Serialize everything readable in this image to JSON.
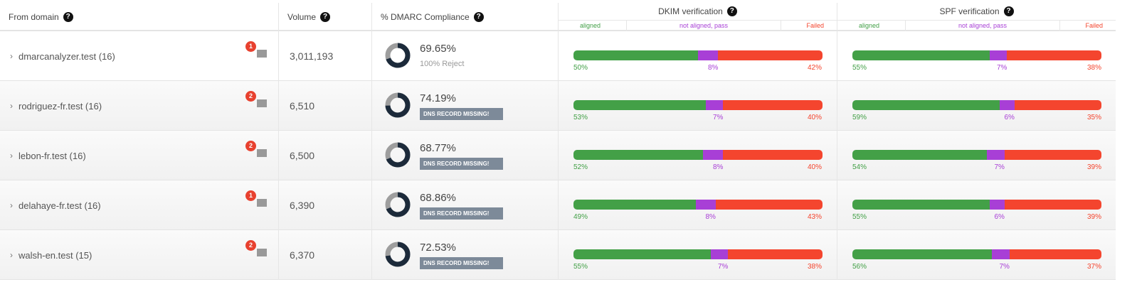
{
  "header": {
    "from_domain": "From domain",
    "volume": "Volume",
    "compliance": "% DMARC Compliance",
    "dkim": "DKIM verification",
    "spf": "SPF verification",
    "sub": {
      "aligned": "aligned",
      "not_aligned": "not aligned, pass",
      "failed": "Failed"
    },
    "help_icon": "?"
  },
  "colors": {
    "aligned": "#43a047",
    "not_aligned": "#a83fd6",
    "failed": "#f4452e",
    "donut_dark": "#1c2a3a",
    "donut_light": "#9e9e9e",
    "badge": "#e8412f"
  },
  "rows": [
    {
      "domain": "dmarcanalyzer.test (16)",
      "badge": "1",
      "volume": "3,011,193",
      "compliance": "69.65%",
      "compliance_value": 69.65,
      "note": "100% Reject",
      "dns_missing": "",
      "dkim": [
        50,
        8,
        42
      ],
      "dkim_labels": [
        "50%",
        "8%",
        "42%"
      ],
      "spf": [
        55,
        7,
        38
      ],
      "spf_labels": [
        "55%",
        "7%",
        "38%"
      ]
    },
    {
      "domain": "rodriguez-fr.test (16)",
      "badge": "2",
      "volume": "6,510",
      "compliance": "74.19%",
      "compliance_value": 74.19,
      "note": "",
      "dns_missing": "DNS RECORD MISSING!",
      "dkim": [
        53,
        7,
        40
      ],
      "dkim_labels": [
        "53%",
        "7%",
        "40%"
      ],
      "spf": [
        59,
        6,
        35
      ],
      "spf_labels": [
        "59%",
        "6%",
        "35%"
      ]
    },
    {
      "domain": "lebon-fr.test (16)",
      "badge": "2",
      "volume": "6,500",
      "compliance": "68.77%",
      "compliance_value": 68.77,
      "note": "",
      "dns_missing": "DNS RECORD MISSING!",
      "dkim": [
        52,
        8,
        40
      ],
      "dkim_labels": [
        "52%",
        "8%",
        "40%"
      ],
      "spf": [
        54,
        7,
        39
      ],
      "spf_labels": [
        "54%",
        "7%",
        "39%"
      ]
    },
    {
      "domain": "delahaye-fr.test (16)",
      "badge": "1",
      "volume": "6,390",
      "compliance": "68.86%",
      "compliance_value": 68.86,
      "note": "",
      "dns_missing": "DNS RECORD MISSING!",
      "dkim": [
        49,
        8,
        43
      ],
      "dkim_labels": [
        "49%",
        "8%",
        "43%"
      ],
      "spf": [
        55,
        6,
        39
      ],
      "spf_labels": [
        "55%",
        "6%",
        "39%"
      ]
    },
    {
      "domain": "walsh-en.test (15)",
      "badge": "2",
      "volume": "6,370",
      "compliance": "72.53%",
      "compliance_value": 72.53,
      "note": "",
      "dns_missing": "DNS RECORD MISSING!",
      "dkim": [
        55,
        7,
        38
      ],
      "dkim_labels": [
        "55%",
        "7%",
        "38%"
      ],
      "spf": [
        56,
        7,
        37
      ],
      "spf_labels": [
        "56%",
        "7%",
        "37%"
      ]
    }
  ]
}
